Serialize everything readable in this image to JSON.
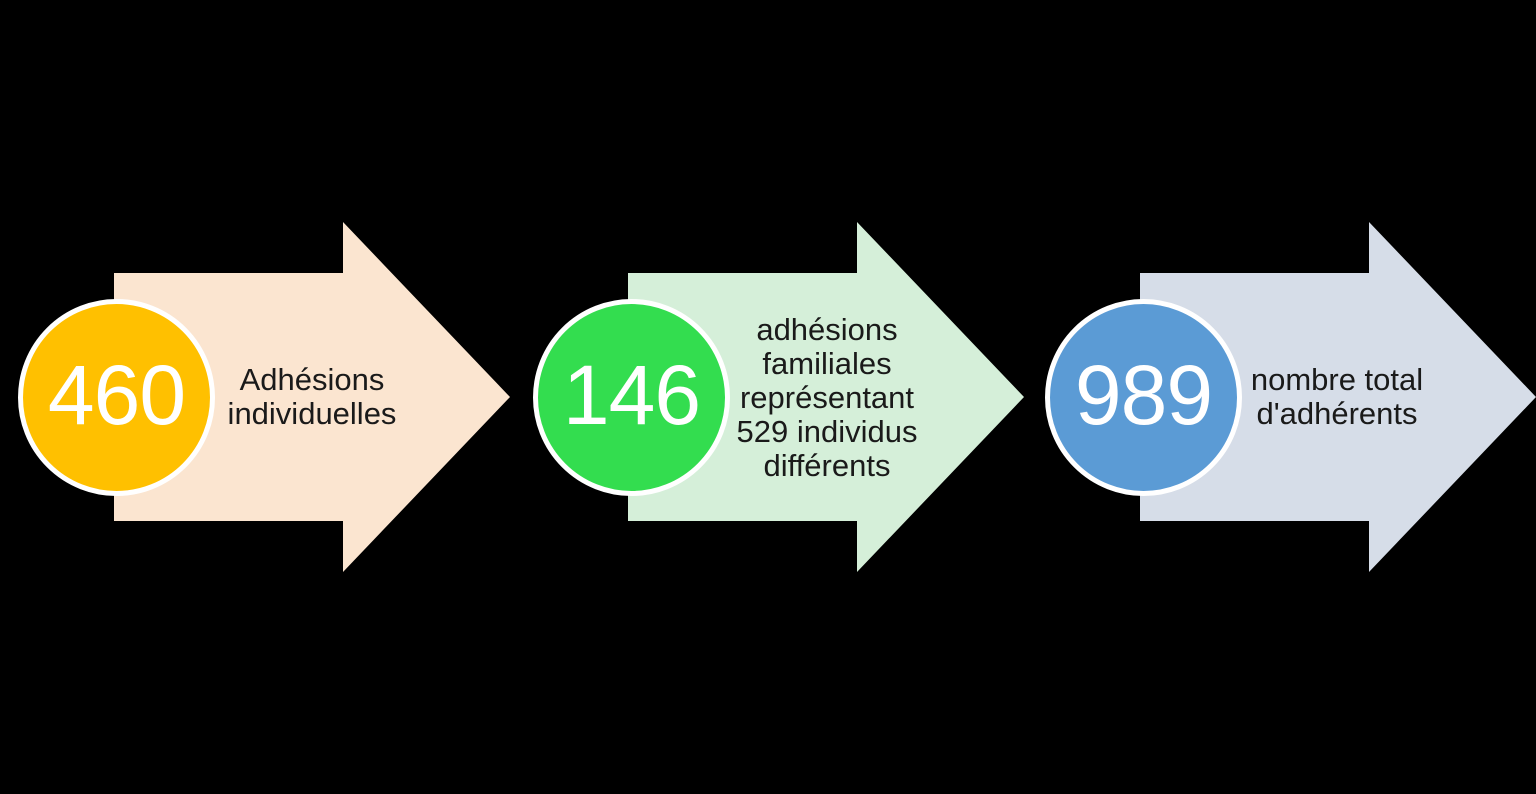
{
  "background_color": "#000000",
  "diagram": {
    "type": "process-arrow-steps",
    "direction": "left-to-right",
    "text_color": "#1A1A1A",
    "value_text_color": "#FFFFFF",
    "circle_ring_color": "#FFFFFF",
    "units": [
      {
        "value": "460",
        "label": "Adhésions\nindividuelles",
        "arrow_color": "#FBE5D0",
        "circle_color": "#FFC000"
      },
      {
        "value": "146",
        "label": "adhésions\nfamiliales\nreprésentant\n529 individus\ndifférents",
        "arrow_color": "#D5EFD9",
        "circle_color": "#33DD4F"
      },
      {
        "value": "989",
        "label": "nombre total\nd'adhérents",
        "arrow_color": "#D6DDE8",
        "circle_color": "#5B9BD5"
      }
    ]
  }
}
